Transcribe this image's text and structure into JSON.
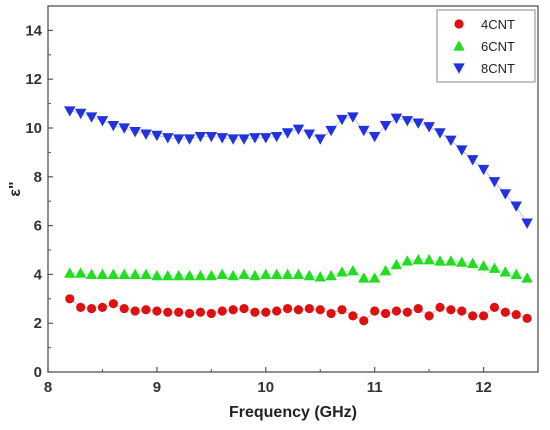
{
  "chart_data": {
    "type": "scatter",
    "title": "",
    "xlabel": "Frequency (GHz)",
    "ylabel": "ε\"",
    "xlim": [
      8,
      12.5
    ],
    "ylim": [
      0,
      15
    ],
    "xticks": [
      8,
      9,
      10,
      11,
      12
    ],
    "yticks": [
      0,
      2,
      4,
      6,
      8,
      10,
      12,
      14
    ],
    "grid": false,
    "legend_position": "top-right",
    "x": [
      8.2,
      8.3,
      8.4,
      8.5,
      8.6,
      8.7,
      8.8,
      8.9,
      9.0,
      9.1,
      9.2,
      9.3,
      9.4,
      9.5,
      9.6,
      9.7,
      9.8,
      9.9,
      10.0,
      10.1,
      10.2,
      10.3,
      10.4,
      10.5,
      10.6,
      10.7,
      10.8,
      10.9,
      11.0,
      11.1,
      11.2,
      11.3,
      11.4,
      11.5,
      11.6,
      11.7,
      11.8,
      11.9,
      12.0,
      12.1,
      12.2,
      12.3,
      12.4
    ],
    "series": [
      {
        "name": "4CNT",
        "marker": "circle",
        "color": "#dd1111",
        "values": [
          3.0,
          2.65,
          2.6,
          2.65,
          2.8,
          2.6,
          2.5,
          2.55,
          2.5,
          2.45,
          2.45,
          2.4,
          2.45,
          2.4,
          2.5,
          2.55,
          2.6,
          2.45,
          2.45,
          2.5,
          2.6,
          2.55,
          2.6,
          2.55,
          2.4,
          2.55,
          2.3,
          2.1,
          2.5,
          2.4,
          2.5,
          2.45,
          2.6,
          2.3,
          2.65,
          2.55,
          2.5,
          2.3,
          2.3,
          2.65,
          2.45,
          2.35,
          2.2
        ]
      },
      {
        "name": "6CNT",
        "marker": "triangle-up",
        "color": "#22dd22",
        "values": [
          4.05,
          4.05,
          4.0,
          4.0,
          4.0,
          4.0,
          4.0,
          4.0,
          3.95,
          3.95,
          3.95,
          3.95,
          3.95,
          3.95,
          4.0,
          3.95,
          4.0,
          3.95,
          4.0,
          4.0,
          4.0,
          4.0,
          3.95,
          3.9,
          3.95,
          4.1,
          4.15,
          3.85,
          3.85,
          4.15,
          4.4,
          4.55,
          4.6,
          4.6,
          4.55,
          4.55,
          4.5,
          4.45,
          4.35,
          4.25,
          4.1,
          4.0,
          3.85
        ]
      },
      {
        "name": "8CNT",
        "marker": "triangle-down",
        "color": "#2233dd",
        "values": [
          10.7,
          10.6,
          10.45,
          10.3,
          10.1,
          10.0,
          9.85,
          9.75,
          9.7,
          9.6,
          9.55,
          9.55,
          9.65,
          9.65,
          9.6,
          9.55,
          9.55,
          9.6,
          9.6,
          9.65,
          9.8,
          9.95,
          9.75,
          9.55,
          9.9,
          10.35,
          10.45,
          9.9,
          9.65,
          10.1,
          10.4,
          10.3,
          10.2,
          10.05,
          9.8,
          9.5,
          9.1,
          8.7,
          8.3,
          7.8,
          7.3,
          6.8,
          6.1
        ]
      }
    ]
  }
}
